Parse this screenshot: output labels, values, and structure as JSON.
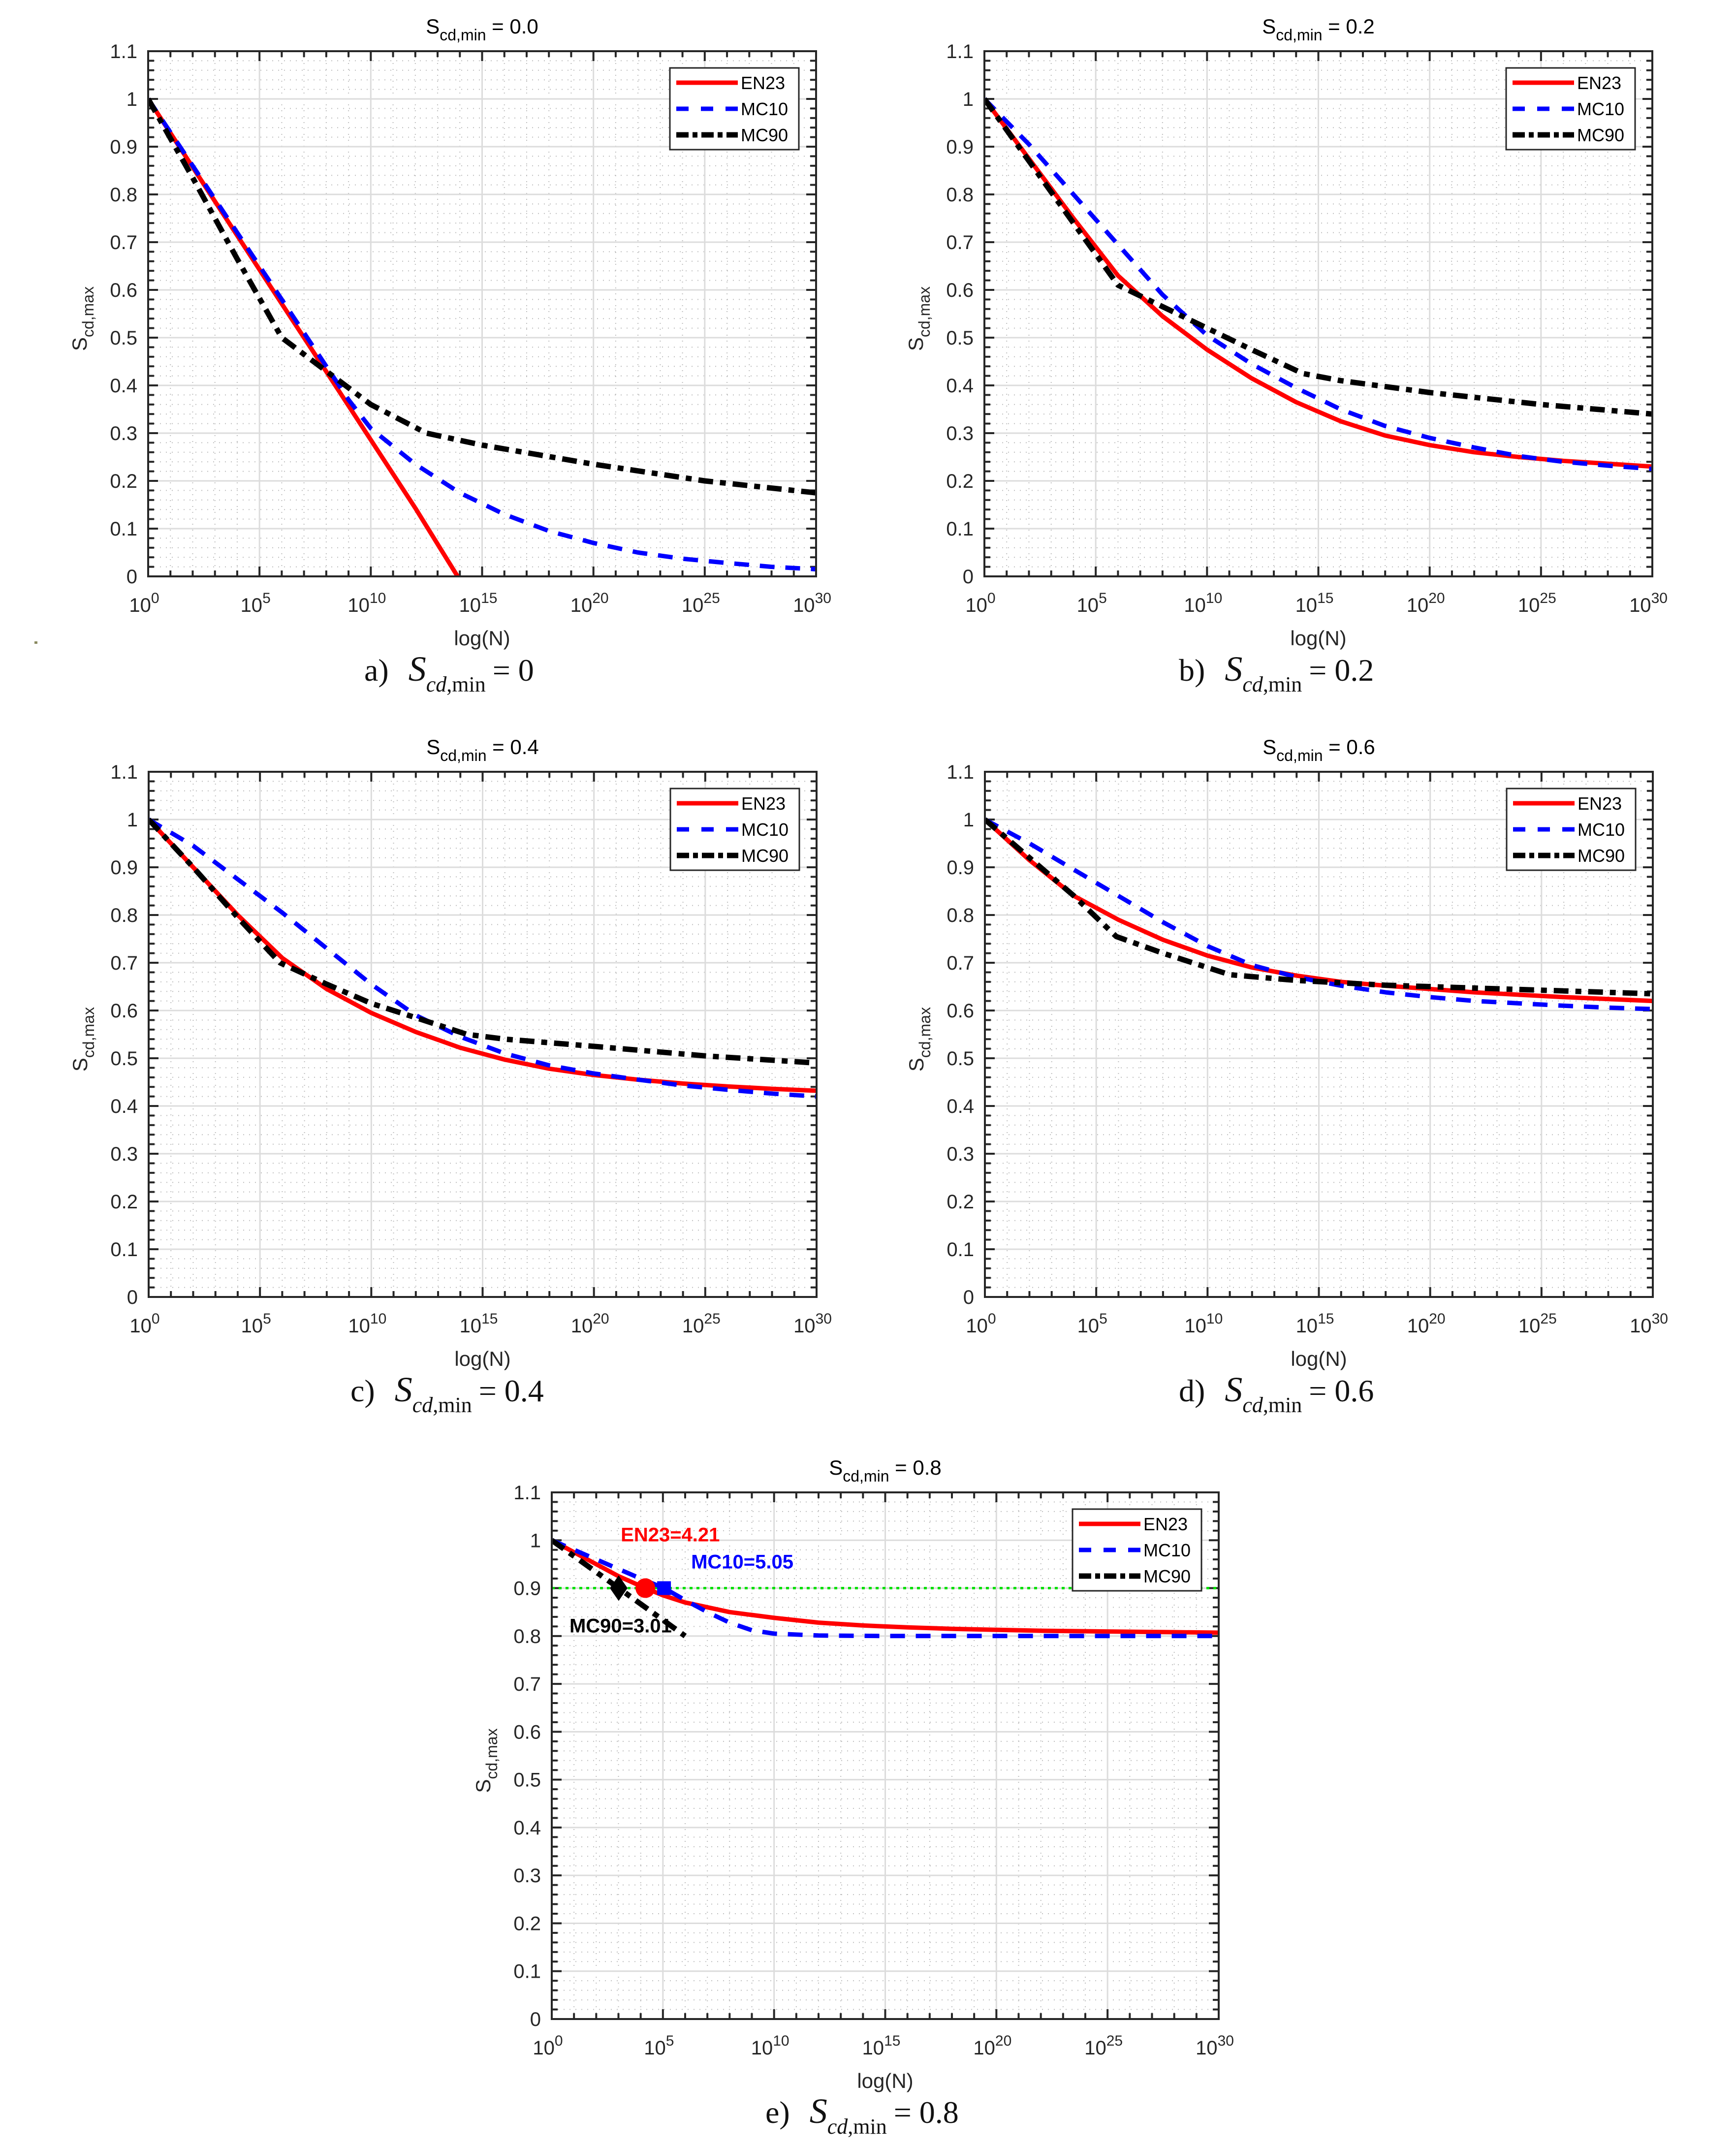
{
  "figure": {
    "x_label": "log(N)",
    "y_label_main": "S",
    "y_label_sub": "cd,max",
    "x_tick_base": "10",
    "x_tick_exponents": [
      "0",
      "5",
      "10",
      "15",
      "20",
      "25",
      "30"
    ],
    "y_tick_labels": [
      "0",
      "0.1",
      "0.2",
      "0.3",
      "0.4",
      "0.5",
      "0.6",
      "0.7",
      "0.8",
      "0.9",
      "1",
      "1.1"
    ],
    "legend": [
      {
        "name": "EN23",
        "color": "#ff0000",
        "style": "solid"
      },
      {
        "name": "MC10",
        "color": "#0000ff",
        "style": "dashed"
      },
      {
        "name": "MC90",
        "color": "#000000",
        "style": "dashdot"
      }
    ],
    "grid_major_color": "#dcdcdc",
    "grid_minor_color": "#bdbdbd"
  },
  "chart_data": [
    {
      "id": "a",
      "type": "line",
      "title_main": "S",
      "title_sub": "cd,min",
      "title_rest": " = 0.0",
      "caption_label": "a)",
      "caption_value": "0",
      "xlabel": "log(N)",
      "ylabel": "S_cd,max",
      "xscale": "log10",
      "xlim_exponent": [
        0,
        30
      ],
      "ylim": [
        0,
        1.1
      ],
      "grid": true,
      "legend_position": "top-right",
      "series": [
        {
          "name": "EN23",
          "x_exponent": [
            0,
            2,
            4,
            6,
            8,
            10,
            12,
            13.9
          ],
          "y": [
            1.0,
            0.857,
            0.714,
            0.571,
            0.429,
            0.286,
            0.143,
            0.0
          ]
        },
        {
          "name": "MC10",
          "x_exponent": [
            0,
            2,
            4,
            6,
            8,
            9,
            10,
            12,
            14,
            16,
            18,
            20,
            22,
            24,
            26,
            28,
            30
          ],
          "y": [
            1.0,
            0.86,
            0.72,
            0.58,
            0.44,
            0.37,
            0.31,
            0.235,
            0.175,
            0.13,
            0.095,
            0.07,
            0.05,
            0.037,
            0.028,
            0.02,
            0.015
          ]
        },
        {
          "name": "MC90",
          "x_exponent": [
            0,
            2,
            4,
            6,
            8,
            10,
            12.5,
            15,
            20,
            25,
            30
          ],
          "y": [
            1.0,
            0.835,
            0.665,
            0.5,
            0.43,
            0.36,
            0.3,
            0.275,
            0.235,
            0.2,
            0.175
          ]
        }
      ]
    },
    {
      "id": "b",
      "type": "line",
      "title_main": "S",
      "title_sub": "cd,min",
      "title_rest": " = 0.2",
      "caption_label": "b)",
      "caption_value": "0.2",
      "xlabel": "log(N)",
      "ylabel": "S_cd,max",
      "xscale": "log10",
      "xlim_exponent": [
        0,
        30
      ],
      "ylim": [
        0,
        1.1
      ],
      "grid": true,
      "legend_position": "top-right",
      "series": [
        {
          "name": "EN23",
          "x_exponent": [
            0,
            2,
            4,
            6,
            8,
            10,
            12,
            14,
            16,
            18,
            20,
            22,
            24,
            26,
            28,
            30
          ],
          "y": [
            1.0,
            0.875,
            0.75,
            0.63,
            0.545,
            0.475,
            0.415,
            0.365,
            0.325,
            0.295,
            0.275,
            0.26,
            0.25,
            0.242,
            0.236,
            0.23
          ]
        },
        {
          "name": "MC10",
          "x_exponent": [
            0,
            2,
            4,
            6,
            8,
            10,
            12,
            14,
            16,
            18,
            20,
            22,
            24,
            26,
            28,
            30
          ],
          "y": [
            1.0,
            0.905,
            0.8,
            0.695,
            0.59,
            0.505,
            0.445,
            0.395,
            0.35,
            0.315,
            0.29,
            0.27,
            0.252,
            0.24,
            0.232,
            0.225
          ]
        },
        {
          "name": "MC90",
          "x_exponent": [
            0,
            2,
            4,
            6,
            8,
            10,
            12,
            14.3,
            16,
            20,
            25,
            30
          ],
          "y": [
            1.0,
            0.87,
            0.74,
            0.61,
            0.565,
            0.52,
            0.475,
            0.425,
            0.41,
            0.385,
            0.36,
            0.34
          ]
        }
      ]
    },
    {
      "id": "c",
      "type": "line",
      "title_main": "S",
      "title_sub": "cd,min",
      "title_rest": " = 0.4",
      "caption_label": "c)",
      "caption_value": "0.4",
      "xlabel": "log(N)",
      "ylabel": "S_cd,max",
      "xscale": "log10",
      "xlim_exponent": [
        0,
        30
      ],
      "ylim": [
        0,
        1.1
      ],
      "grid": true,
      "legend_position": "top-right",
      "series": [
        {
          "name": "EN23",
          "x_exponent": [
            0,
            2,
            4,
            6,
            8,
            10,
            12,
            14,
            16,
            18,
            20,
            22,
            24,
            26,
            28,
            30
          ],
          "y": [
            1.0,
            0.9,
            0.8,
            0.71,
            0.645,
            0.595,
            0.555,
            0.522,
            0.497,
            0.478,
            0.465,
            0.455,
            0.447,
            0.441,
            0.436,
            0.432
          ]
        },
        {
          "name": "MC10",
          "x_exponent": [
            0,
            2,
            4,
            6,
            8,
            10,
            12,
            14,
            16,
            18,
            20,
            22,
            24,
            26,
            28,
            30
          ],
          "y": [
            1.0,
            0.945,
            0.875,
            0.805,
            0.73,
            0.655,
            0.59,
            0.545,
            0.51,
            0.485,
            0.468,
            0.455,
            0.443,
            0.434,
            0.426,
            0.42
          ]
        },
        {
          "name": "MC90",
          "x_exponent": [
            0,
            2,
            4,
            5.9,
            8,
            10,
            12,
            14.3,
            16,
            20,
            25,
            30
          ],
          "y": [
            1.0,
            0.9,
            0.795,
            0.7,
            0.655,
            0.615,
            0.585,
            0.55,
            0.54,
            0.525,
            0.505,
            0.49
          ]
        }
      ]
    },
    {
      "id": "d",
      "type": "line",
      "title_main": "S",
      "title_sub": "cd,min",
      "title_rest": " = 0.6",
      "caption_label": "d)",
      "caption_value": "0.6",
      "xlabel": "log(N)",
      "ylabel": "S_cd,max",
      "xscale": "log10",
      "xlim_exponent": [
        0,
        30
      ],
      "ylim": [
        0,
        1.1
      ],
      "grid": true,
      "legend_position": "top-right",
      "series": [
        {
          "name": "EN23",
          "x_exponent": [
            0,
            2,
            4,
            6,
            8,
            10,
            12,
            14,
            16,
            18,
            20,
            22,
            24,
            26,
            28,
            30
          ],
          "y": [
            1.0,
            0.915,
            0.84,
            0.79,
            0.748,
            0.715,
            0.69,
            0.673,
            0.66,
            0.652,
            0.645,
            0.638,
            0.633,
            0.628,
            0.624,
            0.62
          ]
        },
        {
          "name": "MC10",
          "x_exponent": [
            0,
            2,
            4,
            6,
            8,
            10,
            12,
            14,
            16,
            18,
            20,
            22,
            24,
            26,
            28,
            30
          ],
          "y": [
            1.0,
            0.95,
            0.895,
            0.84,
            0.785,
            0.735,
            0.695,
            0.67,
            0.652,
            0.638,
            0.628,
            0.62,
            0.615,
            0.61,
            0.606,
            0.603
          ]
        },
        {
          "name": "MC90",
          "x_exponent": [
            0,
            2,
            4,
            5.9,
            8,
            11,
            14,
            18,
            22,
            26,
            30
          ],
          "y": [
            1.0,
            0.92,
            0.84,
            0.755,
            0.72,
            0.675,
            0.663,
            0.653,
            0.647,
            0.641,
            0.635
          ]
        }
      ]
    },
    {
      "id": "e",
      "type": "line",
      "title_main": "S",
      "title_sub": "cd,min",
      "title_rest": " = 0.8",
      "caption_label": "e)",
      "caption_value": "0.8",
      "xlabel": "log(N)",
      "ylabel": "S_cd,max",
      "xscale": "log10",
      "xlim_exponent": [
        0,
        30
      ],
      "ylim": [
        0,
        1.1
      ],
      "grid": true,
      "legend_position": "top-right",
      "series": [
        {
          "name": "EN23",
          "x_exponent": [
            0,
            1,
            2,
            3,
            4.21,
            5,
            6,
            8,
            10,
            12,
            14,
            16,
            18,
            20,
            22,
            24,
            26,
            28,
            30
          ],
          "y": [
            1.0,
            0.975,
            0.95,
            0.925,
            0.9,
            0.885,
            0.87,
            0.85,
            0.838,
            0.828,
            0.822,
            0.818,
            0.815,
            0.813,
            0.811,
            0.81,
            0.809,
            0.808,
            0.807
          ]
        },
        {
          "name": "MC10",
          "x_exponent": [
            0,
            1,
            2,
            3,
            4,
            5.05,
            6,
            7,
            8,
            9,
            10,
            12,
            15,
            20,
            25,
            30
          ],
          "y": [
            1.0,
            0.98,
            0.96,
            0.94,
            0.92,
            0.9,
            0.875,
            0.85,
            0.828,
            0.812,
            0.805,
            0.801,
            0.8,
            0.8,
            0.8,
            0.8
          ]
        },
        {
          "name": "MC90",
          "x_exponent": [
            0,
            3.01,
            6
          ],
          "y": [
            1.0,
            0.9,
            0.8
          ]
        }
      ],
      "reference_line": {
        "y": 0.9,
        "color": "#00e000",
        "style": "dotted"
      },
      "markers": [
        {
          "series": "MC90",
          "x_exponent": 3.01,
          "y": 0.9,
          "shape": "diamond",
          "color": "#000000",
          "label": "MC90=3.01"
        },
        {
          "series": "EN23",
          "x_exponent": 4.21,
          "y": 0.9,
          "shape": "circle",
          "color": "#ff0000",
          "label": "EN23=4.21"
        },
        {
          "series": "MC10",
          "x_exponent": 5.05,
          "y": 0.9,
          "shape": "square",
          "color": "#0000ff",
          "label": "MC10=5.05"
        }
      ]
    }
  ]
}
